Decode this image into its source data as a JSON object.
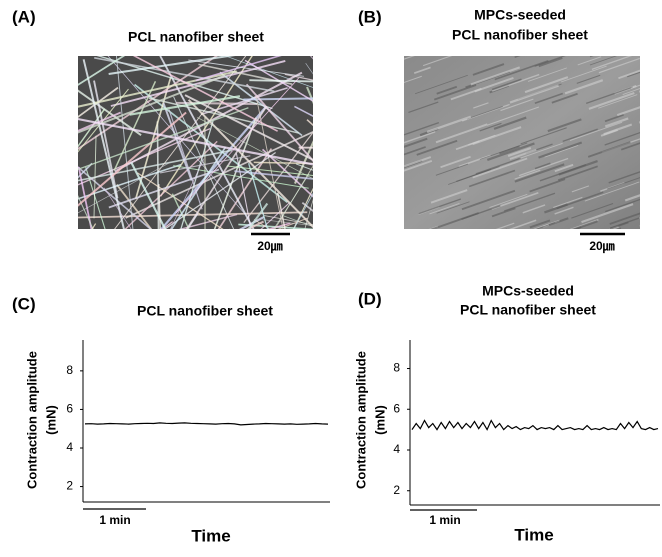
{
  "images": [
    {
      "panel_label": "(A)",
      "title_lines": [
        "PCL nanofiber sheet"
      ],
      "scale_bar_label": "20㎛"
    },
    {
      "panel_label": "(B)",
      "title_lines": [
        "MPCs-seeded",
        "PCL nanofiber sheet"
      ],
      "scale_bar_label": "20㎛"
    }
  ],
  "chart_data": [
    {
      "type": "line",
      "panel_label": "(C)",
      "title_lines": [
        "PCL nanofiber sheet"
      ],
      "ylabel_lines": [
        "Contraction amplitude",
        "(mN)"
      ],
      "xlabel": "Time",
      "time_scale_label": "1 min",
      "ylim": [
        1.2,
        9.6
      ],
      "yticks": [
        2,
        4,
        6,
        8
      ],
      "color": "#000000",
      "values": [
        5.25,
        5.26,
        5.24,
        5.25,
        5.27,
        5.26,
        5.25,
        5.24,
        5.26,
        5.27,
        5.28,
        5.27,
        5.3,
        5.28,
        5.27,
        5.29,
        5.3,
        5.28,
        5.27,
        5.26,
        5.25,
        5.24,
        5.26,
        5.27,
        5.25,
        5.2,
        5.22,
        5.24,
        5.25,
        5.27,
        5.26,
        5.25,
        5.24,
        5.25,
        5.23,
        5.24,
        5.25,
        5.27,
        5.25,
        5.24
      ]
    },
    {
      "type": "line",
      "panel_label": "(D)",
      "title_lines": [
        "MPCs-seeded",
        "PCL nanofiber sheet"
      ],
      "ylabel_lines": [
        "Contraction amplitude",
        "(mN)"
      ],
      "xlabel": "Time",
      "time_scale_label": "1 min",
      "ylim": [
        1.3,
        9.4
      ],
      "yticks": [
        2,
        4,
        6,
        8
      ],
      "color": "#000000",
      "values": [
        5.0,
        5.3,
        5.05,
        5.45,
        5.1,
        5.3,
        5.0,
        5.35,
        5.05,
        5.4,
        5.1,
        5.35,
        5.05,
        5.3,
        5.1,
        5.4,
        5.05,
        5.35,
        5.0,
        5.45,
        5.1,
        5.3,
        5.0,
        5.2,
        5.05,
        5.15,
        5.0,
        5.1,
        5.05,
        5.2,
        5.0,
        5.1,
        5.05,
        5.1,
        5.0,
        5.2,
        5.0,
        5.05,
        5.1,
        5.0,
        5.05,
        5.0,
        5.2,
        5.0,
        5.05,
        5.0,
        5.1,
        5.0,
        5.05,
        5.0,
        5.3,
        5.05,
        5.35,
        5.1,
        5.4,
        5.05,
        5.0,
        5.1,
        5.0,
        5.05
      ]
    }
  ]
}
